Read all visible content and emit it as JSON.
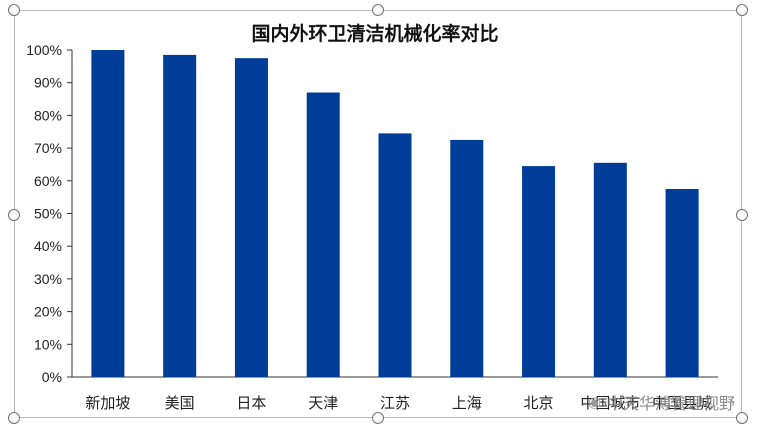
{
  "chart_data": {
    "type": "bar",
    "title": "国内外环卫清洁机械化率对比",
    "categories": [
      "新加坡",
      "美国",
      "日本",
      "天津",
      "江苏",
      "上海",
      "北京",
      "中国城市",
      "中国县城"
    ],
    "values": [
      100,
      98.5,
      97.5,
      87,
      74.5,
      72.5,
      64.5,
      65.5,
      57.5
    ],
    "ylim": [
      0,
      100
    ],
    "yticks": [
      "0%",
      "10%",
      "20%",
      "30%",
      "40%",
      "50%",
      "60%",
      "70%",
      "80%",
      "90%",
      "100%"
    ],
    "bar_color": "#003d99",
    "grid": false,
    "legend": "none"
  },
  "watermark": {
    "text": "中天华溥管理视野",
    "icon": "wechat-icon"
  }
}
